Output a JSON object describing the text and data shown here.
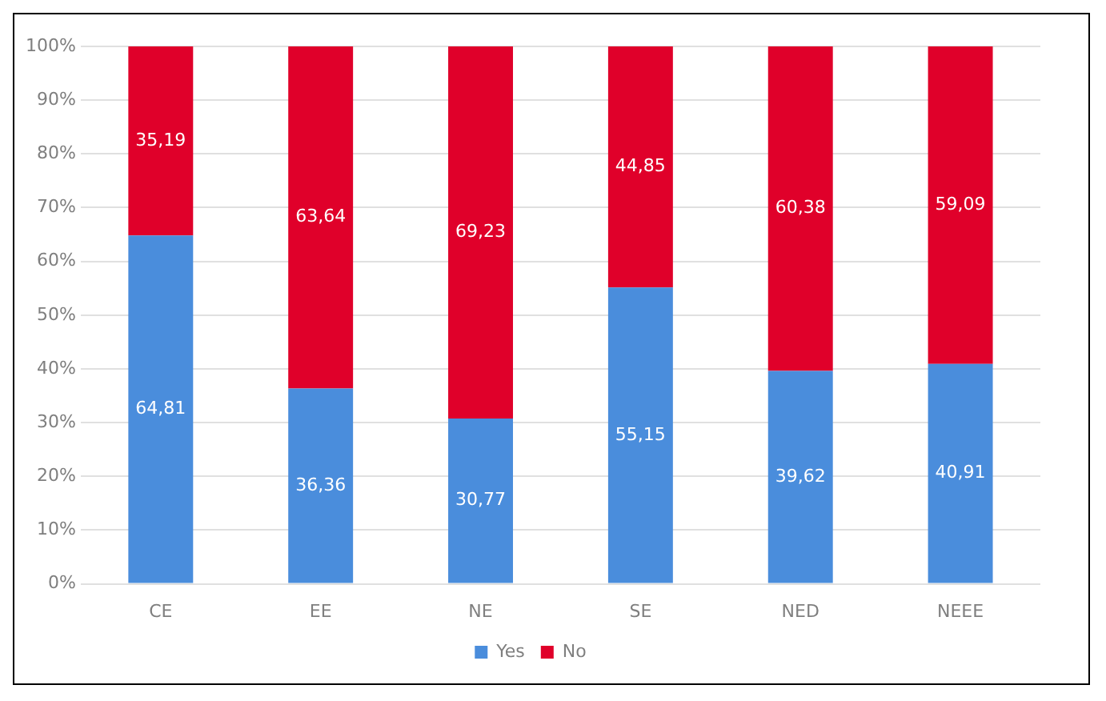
{
  "chart_data": {
    "type": "bar",
    "stacked": true,
    "categories": [
      "CE",
      "EE",
      "NE",
      "SE",
      "NED",
      "NEEE"
    ],
    "series": [
      {
        "name": "Yes",
        "color": "#4a8ddc",
        "values": [
          64.81,
          36.36,
          30.77,
          55.15,
          39.62,
          40.91
        ],
        "value_labels": [
          "64,81",
          "36,36",
          "30,77",
          "55,15",
          "39,62",
          "40,91"
        ]
      },
      {
        "name": "No",
        "color": "#e0002a",
        "values": [
          35.19,
          63.64,
          69.23,
          44.85,
          60.38,
          59.09
        ],
        "value_labels": [
          "35,19",
          "63,64",
          "69,23",
          "44,85",
          "60,38",
          "59,09"
        ]
      }
    ],
    "ylim": [
      0,
      100
    ],
    "yticks": [
      {
        "value": 0,
        "label": "0%"
      },
      {
        "value": 10,
        "label": "10%"
      },
      {
        "value": 20,
        "label": "20%"
      },
      {
        "value": 30,
        "label": "30%"
      },
      {
        "value": 40,
        "label": "40%"
      },
      {
        "value": 50,
        "label": "50%"
      },
      {
        "value": 60,
        "label": "60%"
      },
      {
        "value": 70,
        "label": "70%"
      },
      {
        "value": 80,
        "label": "80%"
      },
      {
        "value": 90,
        "label": "90%"
      },
      {
        "value": 100,
        "label": "100%"
      }
    ],
    "grid": "y",
    "legend": "bottom"
  }
}
